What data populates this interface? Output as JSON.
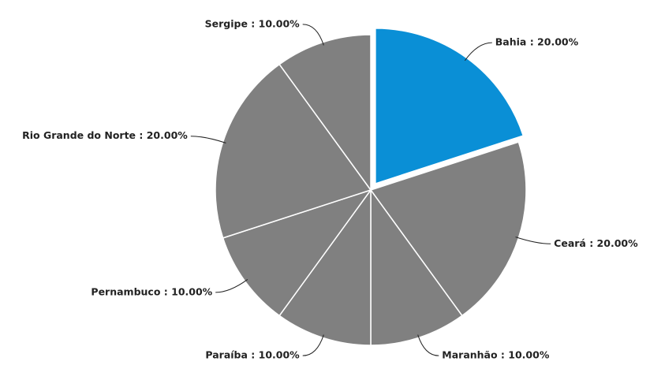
{
  "chart_data": {
    "type": "pie",
    "categories": [
      "Bahia",
      "Ceará",
      "Maranhão",
      "Paraíba",
      "Pernambuco",
      "Rio Grande do Norte",
      "Sergipe"
    ],
    "values": [
      20,
      20,
      10,
      10,
      10,
      20,
      10
    ],
    "value_labels": [
      "Bahia : 20.00%",
      "Ceará : 20.00%",
      "Maranhão : 10.00%",
      "Paraíba : 10.00%",
      "Pernambuco : 10.00%",
      "Rio Grande do Norte : 20.00%",
      "Sergipe : 10.00%"
    ],
    "colors": [
      "#0a8fd6",
      "#808080",
      "#808080",
      "#808080",
      "#808080",
      "#808080",
      "#808080"
    ],
    "exploded": [
      true,
      false,
      false,
      false,
      false,
      false,
      false
    ]
  }
}
